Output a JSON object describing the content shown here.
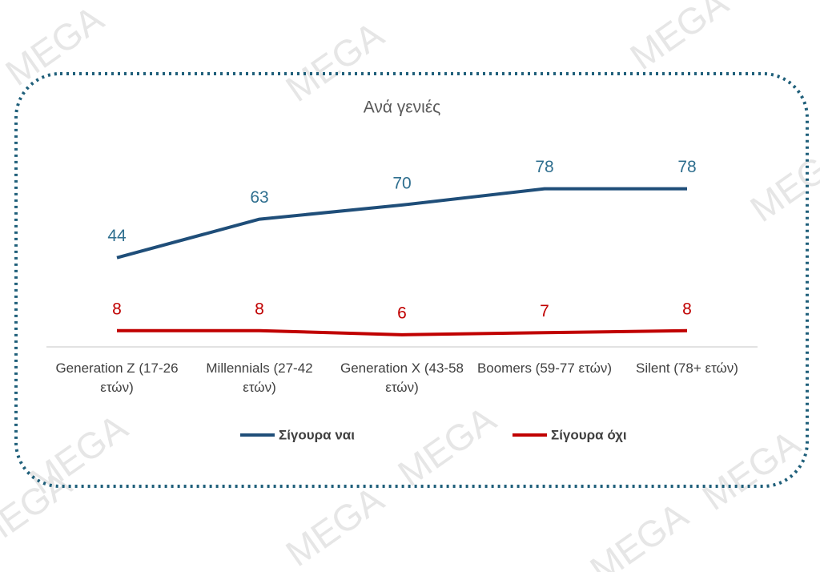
{
  "watermark": "MEGA",
  "chart_data": {
    "type": "line",
    "title": "Ανά γενιές",
    "categories": [
      "Generation Z (17-26 ετών)",
      "Millennials (27-42 ετών)",
      "Generation X (43-58 ετών)",
      "Boomers (59-77 ετών)",
      "Silent (78+ ετών)"
    ],
    "series": [
      {
        "name": "Σίγουρα ναι",
        "color": "#1f4e79",
        "label_color": "#2f6f8f",
        "values": [
          44,
          63,
          70,
          78,
          78
        ]
      },
      {
        "name": "Σίγουρα όχι",
        "color": "#c00000",
        "label_color": "#c00000",
        "values": [
          8,
          8,
          6,
          7,
          8
        ]
      }
    ]
  }
}
